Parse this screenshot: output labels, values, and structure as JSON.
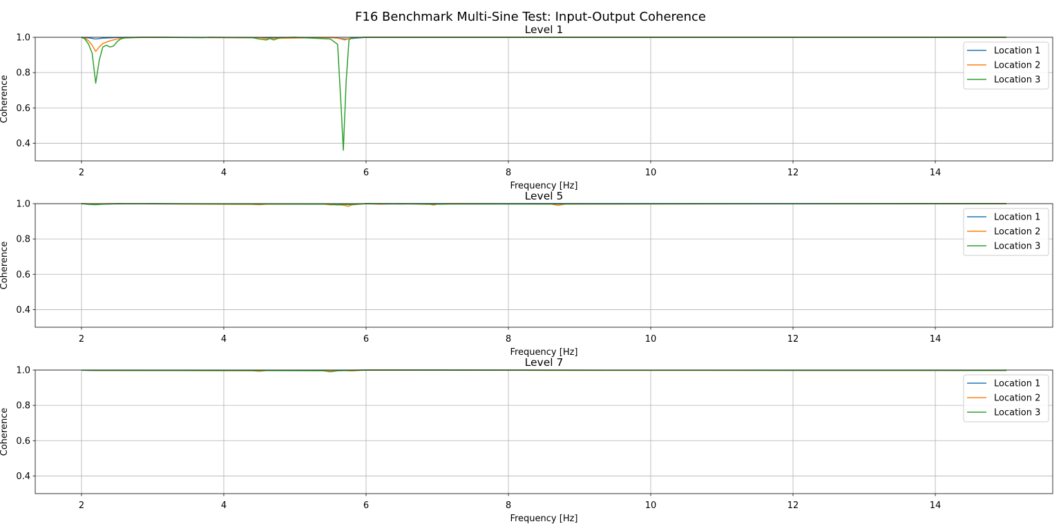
{
  "chart_data": {
    "title": "F16 Benchmark Multi-Sine Test: Input-Output Coherence",
    "type": "line",
    "colors": {
      "Location 1": "#1f77b4",
      "Location 2": "#ff7f0e",
      "Location 3": "#2ca02c"
    },
    "grid": true,
    "legend_placement": "upper right",
    "subplots": [
      {
        "title": "Level 1",
        "xlabel": "Frequency [Hz]",
        "ylabel": "Coherence",
        "xlim": [
          1.35,
          15.65
        ],
        "ylim": [
          0.3,
          1.0
        ],
        "xticks": [
          2,
          4,
          6,
          8,
          10,
          12,
          14
        ],
        "xtick_labels": [
          "2",
          "4",
          "6",
          "8",
          "10",
          "12",
          "14"
        ],
        "yticks": [
          0.4,
          0.6,
          0.8,
          1.0
        ],
        "ytick_labels": [
          "0.4",
          "0.6",
          "0.8",
          "1.0"
        ],
        "series": [
          {
            "name": "Location 1",
            "x": [
              2.0,
              2.1,
              2.2,
              2.3,
              2.5,
              3.0,
              4.5,
              4.6,
              5.5,
              5.6,
              5.7,
              6.0,
              15.0
            ],
            "y": [
              1.0,
              0.997,
              0.99,
              0.995,
              0.999,
              1.0,
              0.998,
              0.997,
              0.999,
              0.995,
              0.99,
              1.0,
              1.0
            ]
          },
          {
            "name": "Location 2",
            "x": [
              2.0,
              2.05,
              2.1,
              2.15,
              2.2,
              2.25,
              2.3,
              2.4,
              2.5,
              2.6,
              3.0,
              4.5,
              4.6,
              5.5,
              5.6,
              5.65,
              5.7,
              5.8,
              6.0,
              15.0
            ],
            "y": [
              1.0,
              0.995,
              0.98,
              0.955,
              0.92,
              0.945,
              0.965,
              0.98,
              0.99,
              0.997,
              1.0,
              0.997,
              0.993,
              0.999,
              0.995,
              0.99,
              0.985,
              0.997,
              1.0,
              1.0
            ]
          },
          {
            "name": "Location 3",
            "x": [
              2.0,
              2.05,
              2.1,
              2.15,
              2.2,
              2.25,
              2.3,
              2.35,
              2.4,
              2.45,
              2.5,
              2.55,
              2.6,
              2.7,
              2.8,
              3.0,
              3.7,
              3.8,
              4.4,
              4.5,
              4.6,
              4.65,
              4.7,
              4.75,
              4.8,
              5.0,
              5.5,
              5.6,
              5.65,
              5.68,
              5.72,
              5.76,
              5.8,
              6.0,
              15.0
            ],
            "y": [
              1.0,
              0.99,
              0.96,
              0.91,
              0.74,
              0.87,
              0.945,
              0.955,
              0.945,
              0.95,
              0.975,
              0.99,
              0.996,
              0.998,
              1.0,
              1.0,
              0.998,
              1.0,
              0.998,
              0.99,
              0.985,
              0.993,
              0.985,
              0.992,
              0.998,
              1.0,
              0.99,
              0.96,
              0.6,
              0.36,
              0.75,
              0.985,
              0.998,
              1.0,
              1.0
            ]
          }
        ]
      },
      {
        "title": "Level 5",
        "xlabel": "Frequency [Hz]",
        "ylabel": "Coherence",
        "xlim": [
          1.35,
          15.65
        ],
        "ylim": [
          0.3,
          1.0
        ],
        "xticks": [
          2,
          4,
          6,
          8,
          10,
          12,
          14
        ],
        "xtick_labels": [
          "2",
          "4",
          "6",
          "8",
          "10",
          "12",
          "14"
        ],
        "yticks": [
          0.4,
          0.6,
          0.8,
          1.0
        ],
        "ytick_labels": [
          "0.4",
          "0.6",
          "0.8",
          "1.0"
        ],
        "series": [
          {
            "name": "Location 1",
            "x": [
              2.0,
              2.2,
              3.0,
              4.5,
              5.6,
              5.8,
              6.0,
              15.0
            ],
            "y": [
              1.0,
              0.998,
              1.0,
              0.998,
              0.997,
              0.996,
              1.0,
              1.0
            ]
          },
          {
            "name": "Location 2",
            "x": [
              2.0,
              2.2,
              2.4,
              4.4,
              4.5,
              4.6,
              5.4,
              5.5,
              5.6,
              5.7,
              5.75,
              5.8,
              5.9,
              6.0,
              6.2,
              6.3,
              6.5,
              6.9,
              6.95,
              7.0,
              7.2,
              8.6,
              8.7,
              8.8,
              15.0
            ],
            "y": [
              1.0,
              0.998,
              1.0,
              0.996,
              0.994,
              0.997,
              0.998,
              0.993,
              0.995,
              0.99,
              0.985,
              0.993,
              0.997,
              1.0,
              0.997,
              0.998,
              1.0,
              0.996,
              0.992,
              0.998,
              1.0,
              0.998,
              0.99,
              0.998,
              1.0
            ]
          },
          {
            "name": "Location 3",
            "x": [
              2.0,
              2.1,
              2.2,
              2.3,
              2.5,
              4.5,
              5.5,
              5.6,
              5.7,
              5.8,
              6.0,
              6.5,
              6.6,
              6.8,
              7.0,
              7.2,
              15.0
            ],
            "y": [
              1.0,
              0.996,
              0.994,
              0.997,
              1.0,
              0.998,
              0.997,
              0.993,
              0.996,
              0.995,
              1.0,
              0.998,
              0.999,
              0.998,
              0.997,
              0.998,
              1.0
            ]
          }
        ]
      },
      {
        "title": "Level 7",
        "xlabel": "Frequency [Hz]",
        "ylabel": "Coherence",
        "xlim": [
          1.35,
          15.65
        ],
        "ylim": [
          0.3,
          1.0
        ],
        "xticks": [
          2,
          4,
          6,
          8,
          10,
          12,
          14
        ],
        "xtick_labels": [
          "2",
          "4",
          "6",
          "8",
          "10",
          "12",
          "14"
        ],
        "yticks": [
          0.4,
          0.6,
          0.8,
          1.0
        ],
        "ytick_labels": [
          "0.4",
          "0.6",
          "0.8",
          "1.0"
        ],
        "series": [
          {
            "name": "Location 1",
            "x": [
              2.0,
              2.2,
              4.5,
              5.5,
              6.0,
              15.0
            ],
            "y": [
              0.999,
              0.998,
              0.997,
              0.998,
              1.0,
              0.998
            ]
          },
          {
            "name": "Location 2",
            "x": [
              2.0,
              2.2,
              4.4,
              4.5,
              4.6,
              5.7,
              5.8,
              6.0,
              8.7,
              15.0
            ],
            "y": [
              0.999,
              0.998,
              0.996,
              0.993,
              0.997,
              0.997,
              0.995,
              1.0,
              0.998,
              0.998
            ]
          },
          {
            "name": "Location 3",
            "x": [
              2.0,
              2.2,
              4.5,
              5.4,
              5.5,
              5.6,
              6.0,
              15.0
            ],
            "y": [
              0.999,
              0.998,
              0.997,
              0.996,
              0.99,
              0.996,
              1.0,
              0.998
            ]
          }
        ]
      }
    ]
  }
}
